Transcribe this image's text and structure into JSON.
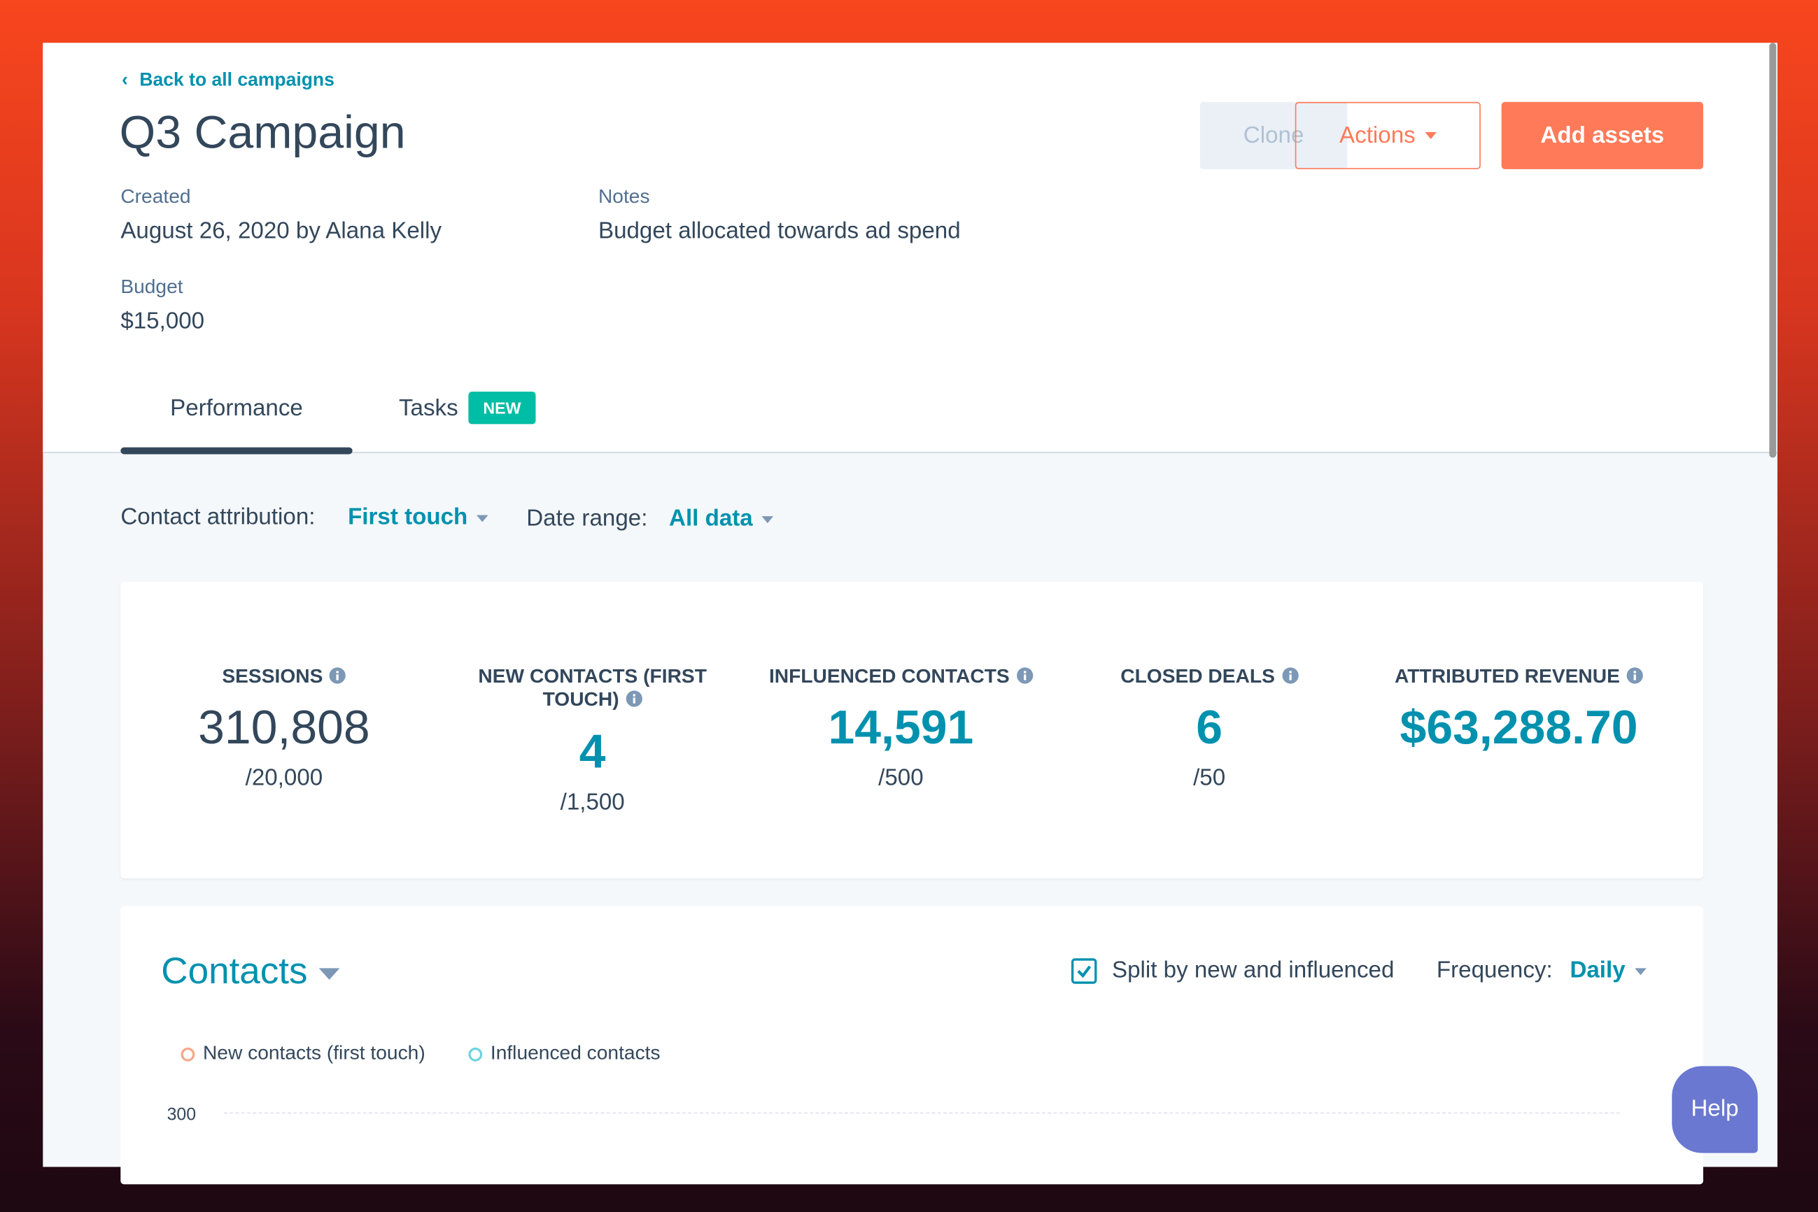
{
  "header": {
    "back_link": "Back to all campaigns",
    "title": "Q3 Campaign",
    "buttons": [
      "Clone",
      "Actions",
      "Add assets"
    ]
  },
  "details": [
    {
      "label": "Created",
      "value": "August 26, 2020 by Alana Kelly"
    },
    {
      "label": "Notes",
      "value": "Budget allocated towards ad spend"
    },
    {
      "label": "Budget",
      "value": "$15,000"
    }
  ],
  "tabs": [
    {
      "label": "Performance"
    },
    {
      "label": "Tasks",
      "badge": "NEW"
    }
  ],
  "filters": [
    {
      "label": "Contact attribution:",
      "value": "First touch"
    },
    {
      "label": "Date range:",
      "value": "All data"
    }
  ],
  "kpis": [
    {
      "label": "SESSIONS",
      "value": "310,808",
      "goal": "/20,000"
    },
    {
      "label": "NEW CONTACTS (FIRST TOUCH)",
      "value": "4",
      "goal": "/1,500"
    },
    {
      "label": "INFLUENCED CONTACTS",
      "value": "14,591",
      "goal": "/500"
    },
    {
      "label": "CLOSED DEALS",
      "value": "6",
      "goal": "/50"
    },
    {
      "label": "ATTRIBUTED REVENUE",
      "value": "$63,288.70"
    }
  ],
  "contacts_chart": {
    "title": "Contacts",
    "checkbox": "Split by new and influenced",
    "frequency_label": "Frequency:",
    "frequency_value": "Daily",
    "legend": [
      "New contacts (first touch)",
      "Influenced contacts"
    ],
    "yticks": [
      300
    ]
  },
  "help": "Help"
}
